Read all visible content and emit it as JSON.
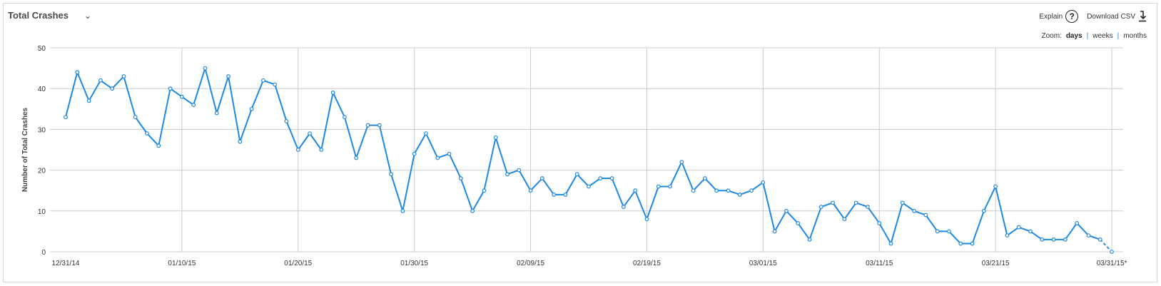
{
  "header": {
    "title": "Total Crashes",
    "explain_label": "Explain",
    "explain_icon": "?",
    "download_label": "Download CSV"
  },
  "zoom": {
    "label": "Zoom:",
    "options": [
      "days",
      "weeks",
      "months"
    ],
    "active": "days"
  },
  "colors": {
    "line": "#1e88e5",
    "grid": "#cccccc"
  },
  "chart_data": {
    "type": "line",
    "title": "Total Crashes",
    "xlabel": "",
    "ylabel": "Number of Total Crashes",
    "ylim": [
      0,
      50
    ],
    "yticks": [
      0,
      10,
      20,
      30,
      40,
      50
    ],
    "xtick_labels": [
      "12/31/14",
      "01/10/15",
      "01/20/15",
      "01/30/15",
      "02/09/15",
      "02/19/15",
      "03/01/15",
      "03/11/15",
      "03/21/15",
      "03/31/15*"
    ],
    "xtick_index": [
      0,
      10,
      20,
      30,
      40,
      50,
      60,
      70,
      80,
      90
    ],
    "grid": true,
    "series": [
      {
        "name": "Total Crashes",
        "start_date": "12/31/14",
        "values": [
          33,
          44,
          37,
          42,
          40,
          43,
          33,
          29,
          26,
          40,
          38,
          36,
          45,
          34,
          43,
          27,
          35,
          42,
          41,
          32,
          25,
          29,
          25,
          39,
          33,
          23,
          31,
          31,
          19,
          10,
          24,
          29,
          23,
          24,
          18,
          10,
          15,
          28,
          19,
          20,
          15,
          18,
          14,
          14,
          19,
          16,
          18,
          18,
          11,
          15,
          8,
          16,
          16,
          22,
          15,
          18,
          15,
          15,
          14,
          15,
          17,
          5,
          10,
          7,
          3,
          11,
          12,
          8,
          12,
          11,
          7,
          2,
          12,
          10,
          9,
          5,
          5,
          2,
          2,
          10,
          16,
          4,
          6,
          5,
          3,
          3,
          3,
          7,
          4,
          3,
          0
        ],
        "last_point_partial": true
      }
    ]
  }
}
